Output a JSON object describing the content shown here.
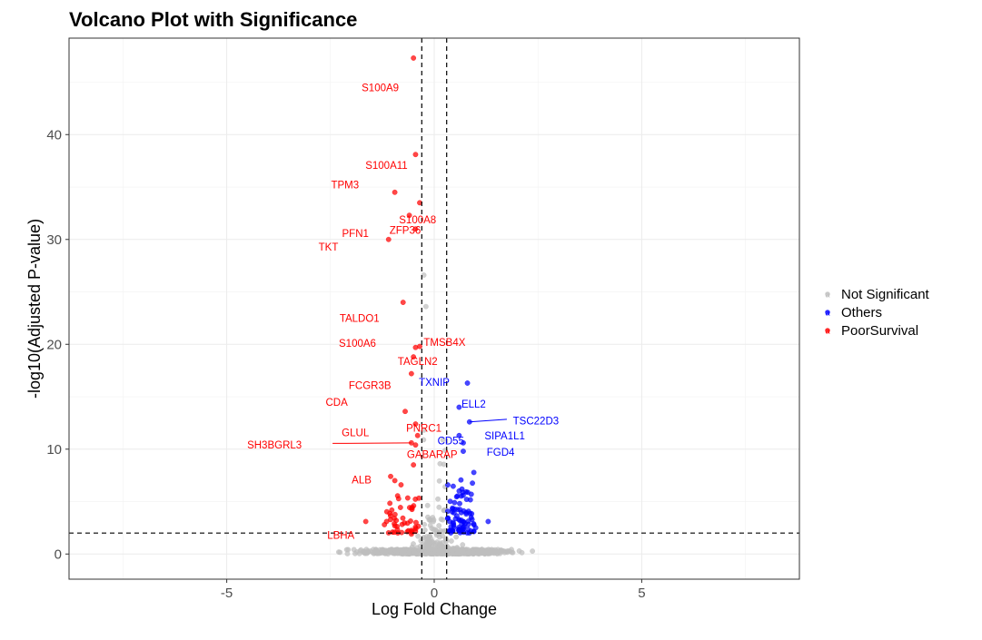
{
  "chart_data": {
    "type": "scatter",
    "title": "Volcano Plot with Significance",
    "xlabel": "Log Fold Change",
    "ylabel": "-log10(Adjusted P-value)",
    "xlim": [
      -8.8,
      8.8
    ],
    "ylim": [
      -2.4,
      49.2
    ],
    "x_ticks": [
      -5,
      0,
      5
    ],
    "x_tick_labels": [
      "-5",
      "0",
      "5"
    ],
    "y_ticks": [
      0,
      10,
      20,
      30,
      40
    ],
    "y_tick_labels": [
      "0",
      "10",
      "20",
      "30",
      "40"
    ],
    "grid": true,
    "thresholds": {
      "logfc": [
        -0.3,
        0.3
      ],
      "neg_log10_p": 2
    },
    "legend": {
      "position": "right",
      "entries": [
        {
          "name": "Not Significant",
          "color": "#bebebe"
        },
        {
          "name": "Others",
          "color": "#0000ff"
        },
        {
          "name": "PoorSurvival",
          "color": "#ff0000"
        }
      ]
    },
    "labeled_genes": [
      {
        "gene": "S100A9",
        "x": -0.5,
        "y": 47.3,
        "group": "PoorSurvival"
      },
      {
        "gene": "S100A11",
        "x": -0.45,
        "y": 38.1,
        "group": "PoorSurvival"
      },
      {
        "gene": "TPM3",
        "x": -0.95,
        "y": 34.5,
        "group": "PoorSurvival"
      },
      {
        "gene": "S100A8",
        "x": -0.35,
        "y": 33.5,
        "group": "PoorSurvival"
      },
      {
        "gene": "PFN1",
        "x": -0.6,
        "y": 32.3,
        "group": "PoorSurvival"
      },
      {
        "gene": "ZFP36",
        "x": -0.45,
        "y": 31.0,
        "group": "PoorSurvival"
      },
      {
        "gene": "TKT",
        "x": -1.1,
        "y": 30.0,
        "group": "PoorSurvival"
      },
      {
        "gene": "TALDO1",
        "x": -0.75,
        "y": 24.0,
        "group": "PoorSurvival"
      },
      {
        "gene": "S100A6",
        "x": -0.45,
        "y": 19.7,
        "group": "PoorSurvival"
      },
      {
        "gene": "TMSB4X",
        "x": -0.35,
        "y": 19.8,
        "group": "PoorSurvival"
      },
      {
        "gene": "TAGLN2",
        "x": -0.5,
        "y": 18.8,
        "group": "PoorSurvival"
      },
      {
        "gene": "FCGR3B",
        "x": -0.55,
        "y": 17.2,
        "group": "PoorSurvival"
      },
      {
        "gene": "CDA",
        "x": -0.7,
        "y": 13.6,
        "group": "PoorSurvival"
      },
      {
        "gene": "PNRC1",
        "x": -0.45,
        "y": 12.4,
        "group": "PoorSurvival"
      },
      {
        "gene": "GLUL",
        "x": -0.4,
        "y": 11.3,
        "group": "PoorSurvival"
      },
      {
        "gene": "SH3BGRL3",
        "x": -0.55,
        "y": 10.6,
        "group": "PoorSurvival"
      },
      {
        "gene": "GABARAP",
        "x": -0.45,
        "y": 10.4,
        "group": "PoorSurvival"
      },
      {
        "gene": "ALB",
        "x": -0.5,
        "y": 8.5,
        "group": "PoorSurvival"
      },
      {
        "gene": "LBHA",
        "x": -0.55,
        "y": 1.9,
        "group": "PoorSurvival"
      },
      {
        "gene": "TXNIP",
        "x": 0.8,
        "y": 16.3,
        "group": "Others"
      },
      {
        "gene": "ELL2",
        "x": 0.6,
        "y": 14.0,
        "group": "Others"
      },
      {
        "gene": "TSC22D3",
        "x": 0.85,
        "y": 12.6,
        "group": "Others"
      },
      {
        "gene": "CD55",
        "x": 0.6,
        "y": 11.3,
        "group": "Others"
      },
      {
        "gene": "SIPA1L1",
        "x": 0.7,
        "y": 10.6,
        "group": "Others"
      },
      {
        "gene": "FGD4",
        "x": 0.7,
        "y": 9.8,
        "group": "Others"
      }
    ]
  }
}
